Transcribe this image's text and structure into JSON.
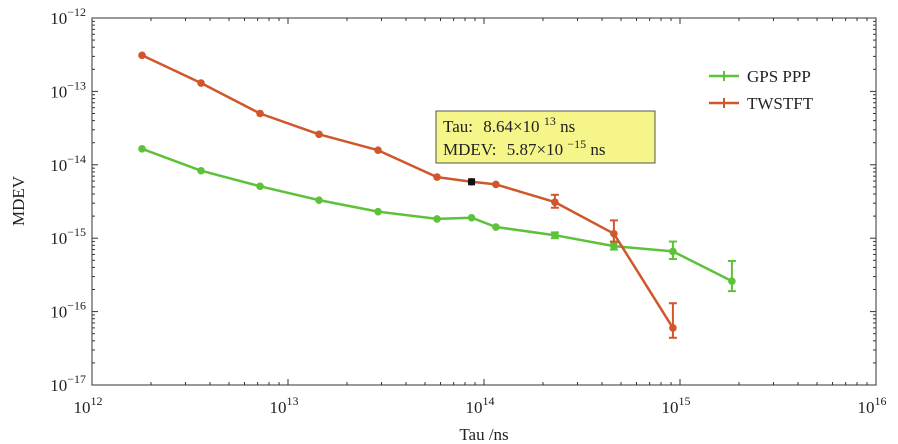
{
  "chart_data": {
    "type": "line",
    "xscale": "log",
    "yscale": "log",
    "xlim": [
      1000000000000.0,
      1e+16
    ],
    "ylim": [
      1e-17,
      1e-12
    ],
    "xlabel": "Tau /ns",
    "ylabel": "MDEV",
    "grid": false,
    "legend_position": "top-right",
    "x_tick_labels": [
      {
        "base": "10",
        "exp": "12"
      },
      {
        "base": "10",
        "exp": "13"
      },
      {
        "base": "10",
        "exp": "14"
      },
      {
        "base": "10",
        "exp": "15"
      },
      {
        "base": "10",
        "exp": "16"
      }
    ],
    "y_tick_labels": [
      {
        "base": "10",
        "exp": "−12"
      },
      {
        "base": "10",
        "exp": "−13"
      },
      {
        "base": "10",
        "exp": "−14"
      },
      {
        "base": "10",
        "exp": "−15"
      },
      {
        "base": "10",
        "exp": "−16"
      },
      {
        "base": "10",
        "exp": "−17"
      }
    ],
    "series": [
      {
        "name": "GPS PPP",
        "color": "#5dc13a",
        "x": [
          1800000000000.0,
          3600000000000.0,
          7200000000000.0,
          14400000000000.0,
          28800000000000.0,
          57600000000000.0,
          86400000000000.0,
          115000000000000.0,
          230000000000000.0,
          460000000000000.0,
          920000000000000.0,
          1840000000000000.0
        ],
        "y": [
          1.65e-14,
          8.3e-15,
          5.1e-15,
          3.3e-15,
          2.3e-15,
          1.83e-15,
          1.9e-15,
          1.42e-15,
          1.1e-15,
          7.8e-16,
          6.6e-16,
          2.6e-16
        ],
        "y_low": [
          null,
          null,
          null,
          null,
          null,
          null,
          null,
          null,
          1e-15,
          7e-16,
          5.2e-16,
          1.9e-16
        ],
        "y_high": [
          null,
          null,
          null,
          null,
          null,
          null,
          null,
          null,
          1.2e-15,
          8.7e-16,
          9e-16,
          4.9e-16
        ]
      },
      {
        "name": "TWSTFT",
        "color": "#d0572b",
        "x": [
          1800000000000.0,
          3600000000000.0,
          7200000000000.0,
          14400000000000.0,
          28800000000000.0,
          57600000000000.0,
          86400000000000.0,
          115000000000000.0,
          230000000000000.0,
          460000000000000.0,
          920000000000000.0
        ],
        "y": [
          3.1e-13,
          1.3e-13,
          5e-14,
          2.6e-14,
          1.58e-14,
          6.8e-15,
          5.87e-15,
          5.4e-15,
          3.1e-15,
          1.15e-15,
          6e-17
        ],
        "y_low": [
          null,
          null,
          null,
          null,
          null,
          null,
          null,
          null,
          2.6e-15,
          9e-16,
          4.4e-17
        ],
        "y_high": [
          null,
          null,
          null,
          null,
          null,
          null,
          null,
          null,
          3.9e-15,
          1.75e-15,
          1.3e-16
        ]
      }
    ],
    "annotation": {
      "line1_label": "Tau:",
      "line1_value": "8.64×10",
      "line1_exp": "13",
      "line1_unit": " ns",
      "line2_label": "MDEV:",
      "line2_value": "5.87×10",
      "line2_exp": "−15",
      "line2_unit": " ns",
      "marker_x": 86400000000000.0,
      "marker_y": 5.87e-15,
      "box_color": "#f5f58a"
    }
  }
}
